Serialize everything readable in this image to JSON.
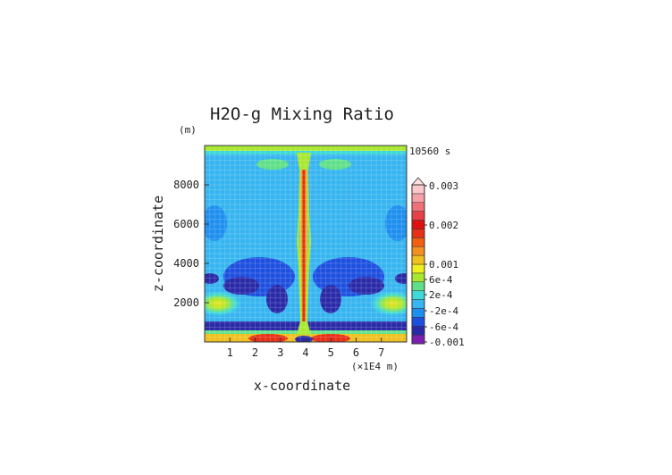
{
  "chart_data": {
    "type": "heatmap",
    "title": "H2O-g Mixing Ratio",
    "ylabel": "z-coordinate",
    "xlabel": "x-coordinate",
    "y_unit": "(m)",
    "x_unit": "(×1E4 m)",
    "time_label": "10560 s",
    "xlim": [
      0,
      8
    ],
    "ylim": [
      0,
      10000
    ],
    "x_ticks": [
      "1",
      "2",
      "3",
      "4",
      "5",
      "6",
      "7"
    ],
    "y_ticks": [
      "2000",
      "4000",
      "6000",
      "8000"
    ],
    "colorbar": {
      "labels": [
        "0.003",
        "0.002",
        "0.001",
        "6e-4",
        "2e-4",
        "-2e-4",
        "-6e-4",
        "-0.001"
      ],
      "colors": [
        "#7a1fb0",
        "#2a2aa8",
        "#1e50e0",
        "#1f8fef",
        "#37b5f0",
        "#3fd9d9",
        "#60e08a",
        "#a8e830",
        "#f0f020",
        "#f0c020",
        "#f09020",
        "#f06010",
        "#e83018",
        "#e01010",
        "#e84048",
        "#f07078",
        "#f8a0a8",
        "#fcc8cc"
      ],
      "extend_max": true
    }
  }
}
